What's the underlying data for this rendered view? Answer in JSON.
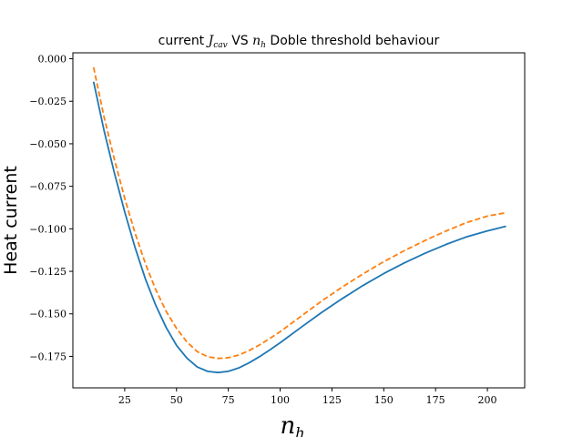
{
  "chart_data": {
    "type": "line",
    "title": {
      "prefix": "current ",
      "math1_base": "J",
      "math1_sub": "cav",
      "middle": " VS ",
      "math2_base": "n",
      "math2_sub": "h",
      "suffix": " Doble threshold behaviour"
    },
    "xlabel": {
      "base": "n",
      "sub": "h"
    },
    "ylabel": "Heat current",
    "xlim": [
      0,
      218
    ],
    "ylim": [
      -0.1935,
      0.0035
    ],
    "xticks": [
      25,
      50,
      75,
      100,
      125,
      150,
      175,
      200
    ],
    "xtick_labels": [
      "25",
      "50",
      "75",
      "100",
      "125",
      "150",
      "175",
      "200"
    ],
    "yticks": [
      0.0,
      -0.025,
      -0.05,
      -0.075,
      -0.1,
      -0.125,
      -0.15,
      -0.175
    ],
    "ytick_labels": [
      "0.000",
      "−0.025",
      "−0.050",
      "−0.075",
      "−0.100",
      "−0.125",
      "−0.150",
      "−0.175"
    ],
    "grid": false,
    "series": [
      {
        "color": "#1f77b4",
        "style": "solid",
        "x": [
          10,
          15,
          20,
          25,
          30,
          35,
          40,
          45,
          50,
          55,
          60,
          65,
          70,
          75,
          80,
          85,
          90,
          95,
          100,
          110,
          120,
          130,
          140,
          150,
          160,
          170,
          180,
          190,
          200,
          209
        ],
        "y": [
          -0.0135,
          -0.042,
          -0.067,
          -0.09,
          -0.111,
          -0.1295,
          -0.145,
          -0.158,
          -0.1685,
          -0.176,
          -0.1812,
          -0.1838,
          -0.1845,
          -0.1838,
          -0.1818,
          -0.1788,
          -0.1752,
          -0.1712,
          -0.167,
          -0.158,
          -0.1492,
          -0.141,
          -0.1333,
          -0.1263,
          -0.12,
          -0.1143,
          -0.1092,
          -0.1047,
          -0.1012,
          -0.0985
        ]
      },
      {
        "color": "#ff7f0e",
        "style": "dashed",
        "x": [
          10,
          15,
          20,
          25,
          30,
          35,
          40,
          45,
          50,
          55,
          60,
          65,
          70,
          75,
          80,
          85,
          90,
          95,
          100,
          110,
          120,
          130,
          140,
          150,
          160,
          170,
          180,
          190,
          200,
          209
        ],
        "y": [
          -0.005,
          -0.034,
          -0.059,
          -0.082,
          -0.1025,
          -0.1205,
          -0.1358,
          -0.1485,
          -0.1585,
          -0.1665,
          -0.1722,
          -0.1752,
          -0.1762,
          -0.1758,
          -0.1742,
          -0.1716,
          -0.1683,
          -0.1645,
          -0.1605,
          -0.1515,
          -0.1425,
          -0.1342,
          -0.1265,
          -0.1193,
          -0.1128,
          -0.1068,
          -0.1013,
          -0.0963,
          -0.0925,
          -0.0905
        ]
      }
    ]
  }
}
